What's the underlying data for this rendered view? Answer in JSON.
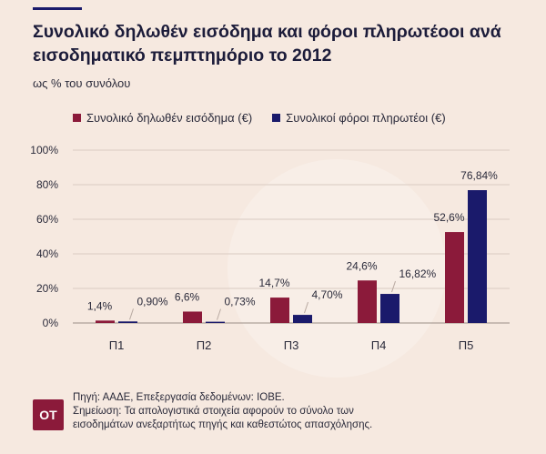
{
  "header": {
    "title": "Συνολικό δηλωθέν εισόδημα και φόροι πληρωτέοοι ανά εισοδηματικό πεμπτημόριο το 2012",
    "subtitle": "ως % του συνόλου"
  },
  "colors": {
    "series_income": "#8b1a3a",
    "series_tax": "#1a1a6b",
    "background": "#f6e9e0",
    "grid": "#d9cbc2"
  },
  "chart_data": {
    "type": "bar",
    "categories": [
      "Π1",
      "Π2",
      "Π3",
      "Π4",
      "Π5"
    ],
    "series": [
      {
        "name": "Συνολικό δηλωθέν εισόδημα (€)",
        "values": [
          1.4,
          6.6,
          14.7,
          24.6,
          52.6
        ],
        "labels": [
          "1,4%",
          "6,6%",
          "14,7%",
          "24,6%",
          "52,6%"
        ],
        "color": "#8b1a3a"
      },
      {
        "name": "Συνολικοί φόροι πληρωτέοι (€)",
        "values": [
          0.9,
          0.73,
          4.7,
          16.82,
          76.84
        ],
        "labels": [
          "0,90%",
          "0,73%",
          "4,70%",
          "16,82%",
          "76,84%"
        ],
        "color": "#1a1a6b"
      }
    ],
    "yticks": [
      "0%",
      "20%",
      "40%",
      "60%",
      "80%",
      "100%"
    ],
    "ylim": [
      0,
      100
    ],
    "grid": true,
    "legend": "top-left"
  },
  "footer": {
    "logo": "ΟΤ",
    "source": "Πηγή: ΑΑΔΕ, Επεξεργασία δεδομένων: ΙΟΒΕ.",
    "note_line1": "Σημείωση: Τα απολογιστικά στοιχεία αφορούν το σύνολο των",
    "note_line2": "εισοδημάτων ανεξαρτήτως πηγής και καθεστώτος απασχόλησης."
  }
}
